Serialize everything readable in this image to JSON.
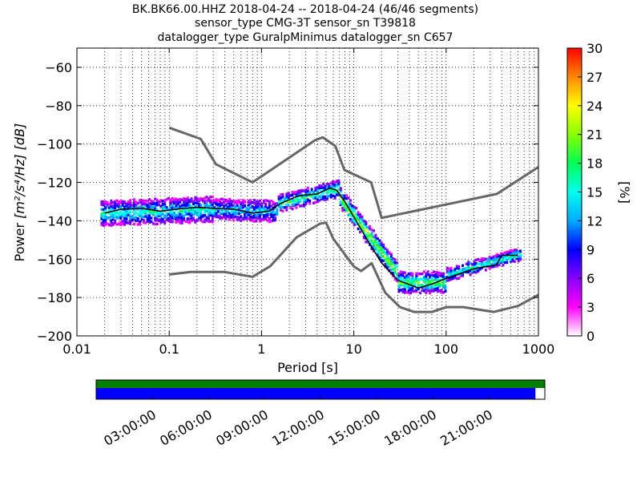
{
  "chart_data": {
    "type": "heatmap",
    "title_lines": [
      "BK.BK66.00.HHZ   2018-04-24 -- 2018-04-24  (46/46 segments)",
      "sensor_type CMG-3T sensor_sn T39818",
      "datalogger_type GuralpMinimus datalogger_sn C657"
    ],
    "xlabel": "Period [s]",
    "ylabel_prefix": "Power",
    "ylabel_units": "[m²/s⁴/Hz] [dB]",
    "xscale": "log",
    "xlim": [
      0.01,
      1000
    ],
    "ylim": [
      -200,
      -50
    ],
    "x_ticks": [
      {
        "v": 0.01,
        "label": "0.01"
      },
      {
        "v": 0.1,
        "label": "0.1"
      },
      {
        "v": 1,
        "label": "1"
      },
      {
        "v": 10,
        "label": "10"
      },
      {
        "v": 100,
        "label": "100"
      },
      {
        "v": 1000,
        "label": "1000"
      }
    ],
    "y_ticks": [
      {
        "v": -60,
        "label": "−60"
      },
      {
        "v": -80,
        "label": "−80"
      },
      {
        "v": -100,
        "label": "−100"
      },
      {
        "v": -120,
        "label": "−120"
      },
      {
        "v": -140,
        "label": "−140"
      },
      {
        "v": -160,
        "label": "−160"
      },
      {
        "v": -180,
        "label": "−180"
      },
      {
        "v": -200,
        "label": "−200"
      }
    ],
    "grid": true,
    "colorbar": {
      "label": "[%]",
      "range": [
        0,
        30
      ],
      "ticks": [
        {
          "v": 0,
          "label": "0"
        },
        {
          "v": 3,
          "label": "3"
        },
        {
          "v": 6,
          "label": "6"
        },
        {
          "v": 9,
          "label": "9"
        },
        {
          "v": 12,
          "label": "12"
        },
        {
          "v": 15,
          "label": "15"
        },
        {
          "v": 18,
          "label": "18"
        },
        {
          "v": 21,
          "label": "21"
        },
        {
          "v": 24,
          "label": "24"
        },
        {
          "v": 27,
          "label": "27"
        },
        {
          "v": 30,
          "label": "30"
        }
      ],
      "colors": [
        "#ffffff",
        "#ff00ff",
        "#8800ff",
        "#0000ff",
        "#00aaff",
        "#00ffee",
        "#00ff55",
        "#88ff00",
        "#ffff00",
        "#ff8800",
        "#ff0000"
      ]
    },
    "noise_model_high": [
      [
        0.1,
        -91.5
      ],
      [
        0.22,
        -97.4
      ],
      [
        0.32,
        -110.5
      ],
      [
        0.8,
        -120
      ],
      [
        3.8,
        -98
      ],
      [
        4.6,
        -96.5
      ],
      [
        6.3,
        -101
      ],
      [
        7.9,
        -113.5
      ],
      [
        15.4,
        -120
      ],
      [
        20,
        -138.5
      ],
      [
        354.8,
        -126
      ],
      [
        1000,
        -112
      ]
    ],
    "noise_model_low": [
      [
        0.1,
        -168
      ],
      [
        0.17,
        -166.7
      ],
      [
        0.4,
        -166.7
      ],
      [
        0.8,
        -169.2
      ],
      [
        1.24,
        -163.7
      ],
      [
        2.4,
        -148.6
      ],
      [
        4.3,
        -141.5
      ],
      [
        5,
        -141
      ],
      [
        6,
        -149.4
      ],
      [
        10,
        -163.8
      ],
      [
        12,
        -166.2
      ],
      [
        15.6,
        -162.1
      ],
      [
        21.9,
        -177.5
      ],
      [
        31.6,
        -185
      ],
      [
        45,
        -187.5
      ],
      [
        70,
        -187.5
      ],
      [
        101,
        -185
      ],
      [
        154,
        -185
      ],
      [
        328,
        -187.5
      ],
      [
        600,
        -184.4
      ],
      [
        1000,
        -178.6
      ]
    ],
    "mean_psd": [
      [
        0.02,
        -136
      ],
      [
        0.03,
        -134
      ],
      [
        0.05,
        -133.5
      ],
      [
        0.08,
        -135
      ],
      [
        0.12,
        -134
      ],
      [
        0.2,
        -133
      ],
      [
        0.3,
        -133.5
      ],
      [
        0.5,
        -134
      ],
      [
        0.8,
        -136
      ],
      [
        1.2,
        -135
      ],
      [
        1.6,
        -131
      ],
      [
        2.5,
        -127
      ],
      [
        4,
        -126
      ],
      [
        5.5,
        -123
      ],
      [
        6.5,
        -124
      ],
      [
        8,
        -130
      ],
      [
        10,
        -138
      ],
      [
        14,
        -150
      ],
      [
        20,
        -162
      ],
      [
        30,
        -171
      ],
      [
        50,
        -175
      ],
      [
        70,
        -173
      ],
      [
        100,
        -170
      ],
      [
        200,
        -165
      ],
      [
        350,
        -163
      ],
      [
        400,
        -158
      ],
      [
        600,
        -158
      ]
    ],
    "histogram_bands": [
      {
        "x_range": [
          0.018,
          0.3
        ],
        "center": [
          -136,
          -134
        ],
        "spread": 6,
        "peak_pct": 14
      },
      {
        "x_range": [
          0.3,
          1.5
        ],
        "center": [
          -134,
          -135
        ],
        "spread": 5,
        "peak_pct": 12
      },
      {
        "x_range": [
          1.5,
          7
        ],
        "center": [
          -131,
          -123
        ],
        "spread": 4,
        "peak_pct": 16
      },
      {
        "x_range": [
          7,
          30
        ],
        "center": [
          -128,
          -168
        ],
        "spread": 5,
        "peak_pct": 20
      },
      {
        "x_range": [
          30,
          100
        ],
        "center": [
          -172,
          -172
        ],
        "spread": 5,
        "peak_pct": 18
      },
      {
        "x_range": [
          100,
          650
        ],
        "center": [
          -168,
          -157
        ],
        "spread": 3,
        "peak_pct": 14
      }
    ],
    "time_axis": {
      "ticks": [
        "03:00:00",
        "06:00:00",
        "09:00:00",
        "12:00:00",
        "15:00:00",
        "18:00:00",
        "21:00:00"
      ],
      "bars": [
        {
          "name": "data-present",
          "color": "#008000",
          "fraction": 1.0
        },
        {
          "name": "psd-coverage",
          "color": "#0000ff",
          "fraction": 0.979
        }
      ]
    }
  }
}
